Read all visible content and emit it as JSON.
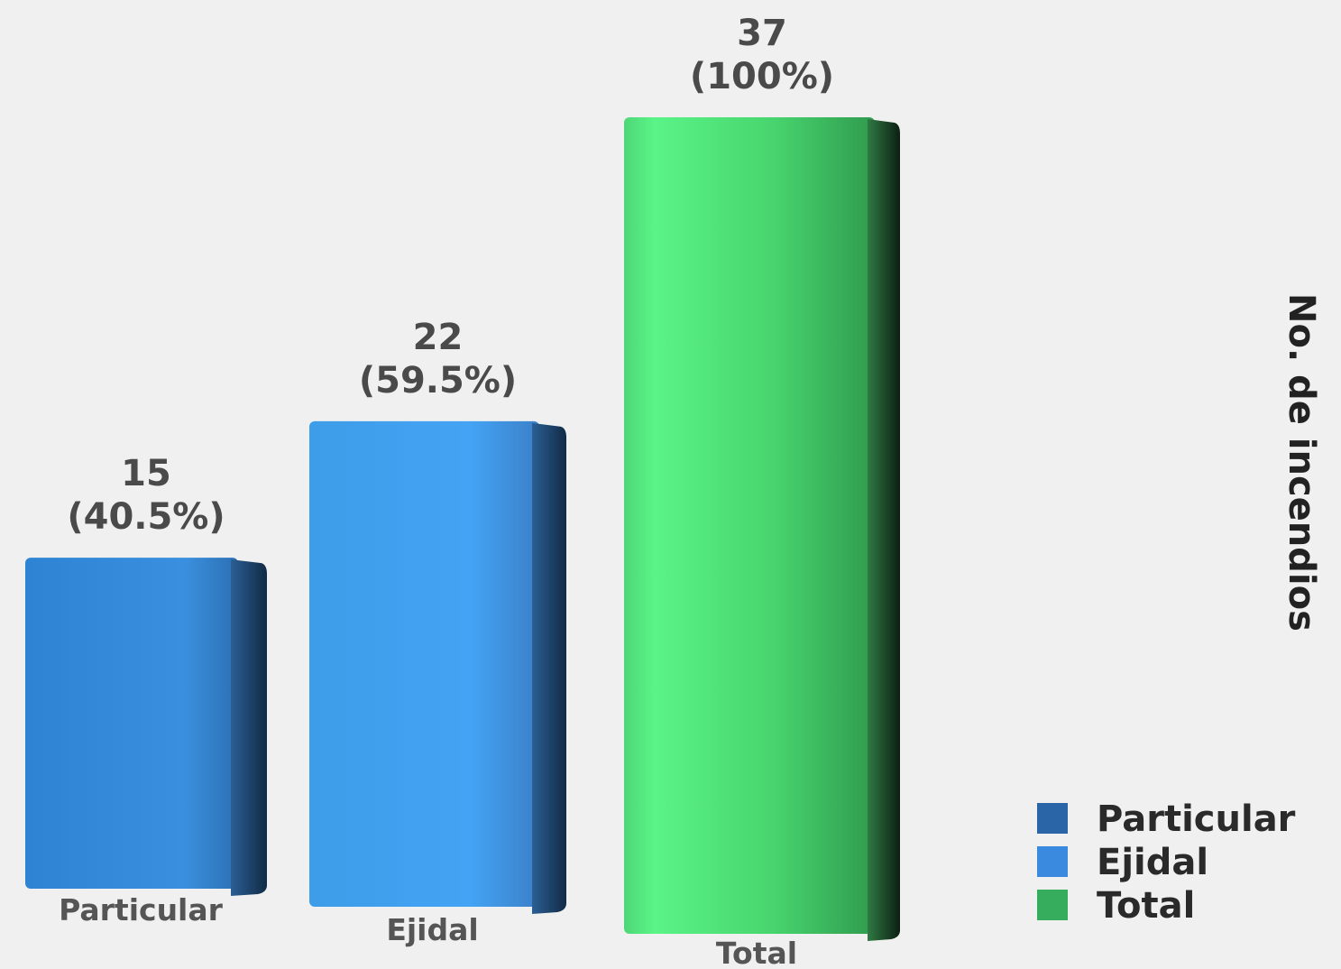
{
  "chart_data": {
    "type": "bar",
    "categories": [
      "Particular",
      "Ejidal",
      "Total"
    ],
    "values": [
      15,
      22,
      37
    ],
    "percent_labels": [
      "(40.5%)",
      "(59.5%)",
      "(100%)"
    ],
    "value_labels": [
      "15",
      "22",
      "37"
    ],
    "ylabel": "No. de incendios",
    "ylim": [
      0,
      37
    ],
    "legend_position": "bottom-right",
    "legend": [
      {
        "label": "Particular",
        "color": "#2a65a8"
      },
      {
        "label": "Ejidal",
        "color": "#3a8be0"
      },
      {
        "label": "Total",
        "color": "#35ad5c"
      }
    ],
    "colors": {
      "Particular": "#2f86d6",
      "Ejidal": "#42a2f3",
      "Total": "#55e882"
    },
    "background": "#f0f0f0"
  }
}
